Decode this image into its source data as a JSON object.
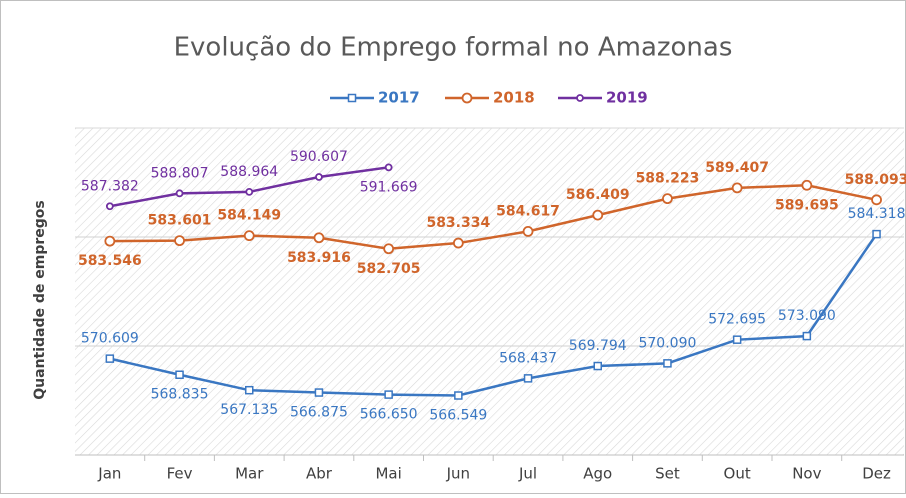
{
  "chart_data": {
    "type": "line",
    "title": "Evolução do Emprego formal no Amazonas",
    "y_label": "Quantidade  de empregos",
    "categories": [
      "Jan",
      "Fev",
      "Mar",
      "Abr",
      "Mai",
      "Jun",
      "Jul",
      "Ago",
      "Set",
      "Out",
      "Nov",
      "Dez"
    ],
    "ylim": [
      560000,
      596000
    ],
    "grid_values": [
      572000,
      584000
    ],
    "legend": "top",
    "series": [
      {
        "name": "2017",
        "color": "#3a77c2",
        "marker": "square",
        "values": [
          570609,
          568835,
          567135,
          566875,
          566650,
          566549,
          568437,
          569794,
          570090,
          572695,
          573090,
          584318
        ],
        "value_labels": [
          "570.609",
          "568.835",
          "567.135",
          "566.875",
          "566.650",
          "566.549",
          "568.437",
          "569.794",
          "570.090",
          "572.695",
          "573.090",
          "584.318"
        ]
      },
      {
        "name": "2018",
        "color": "#d0652b",
        "marker": "circle",
        "values": [
          583546,
          583601,
          584149,
          583916,
          582705,
          583334,
          584617,
          586409,
          588223,
          589407,
          589695,
          588093
        ],
        "value_labels": [
          "583.546",
          "583.601",
          "584.149",
          "583.916",
          "582.705",
          "583.334",
          "584.617",
          "586.409",
          "588.223",
          "589.407",
          "589.695",
          "588.093"
        ]
      },
      {
        "name": "2019",
        "color": "#7030a0",
        "marker": "dot",
        "values": [
          587382,
          588807,
          588964,
          590607,
          591669,
          null,
          null,
          null,
          null,
          null,
          null,
          null
        ],
        "value_labels": [
          "587.382",
          "588.807",
          "588.964",
          "590.607",
          "591.669",
          null,
          null,
          null,
          null,
          null,
          null,
          null
        ]
      }
    ]
  }
}
